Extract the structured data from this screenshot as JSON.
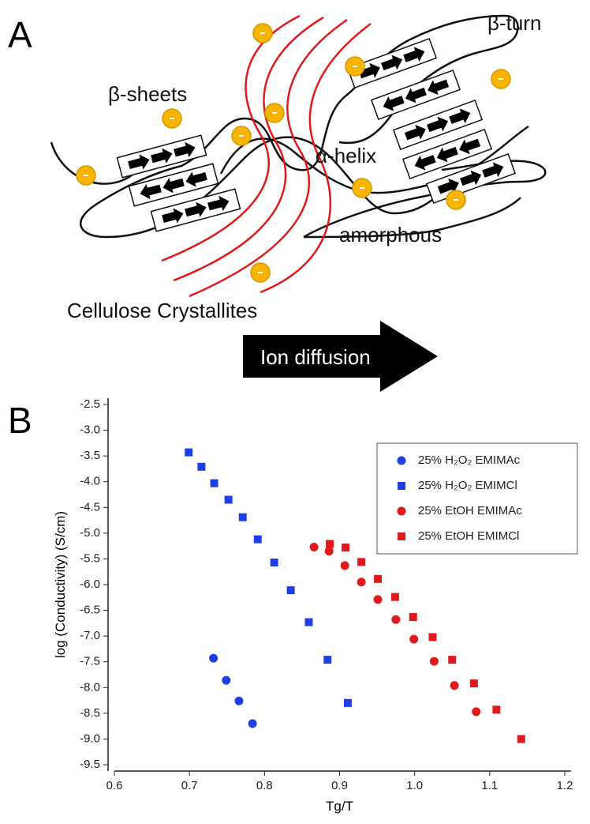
{
  "panel_a": {
    "label": "A",
    "labels": {
      "beta_turn": "β-turn",
      "beta_sheets": "β-sheets",
      "alpha_helix": "α-helix",
      "amorphous": "amorphous",
      "cellulose": "Cellulose Crystallites",
      "ion_diffusion": "Ion diffusion"
    }
  },
  "panel_b": {
    "label": "B"
  },
  "chart_data": {
    "type": "scatter",
    "xlabel": "Tg/T",
    "ylabel": "log (Conductivity) (S/cm)",
    "xlim": [
      0.6,
      1.2
    ],
    "xticks": [
      0.6,
      0.7,
      0.8,
      0.9,
      {
        "value": 1,
        "label": "1.0"
      },
      1.1,
      1.2
    ],
    "ylim": [
      -9.5,
      -2.5
    ],
    "yticks": [
      -2.5,
      {
        "value": -3,
        "label": "-3.0"
      },
      -3.5,
      {
        "value": -4,
        "label": "-4.0"
      },
      -4.5,
      {
        "value": -5,
        "label": "-5.0"
      },
      -5.5,
      {
        "value": -6,
        "label": "-6.0"
      },
      -6.5,
      {
        "value": -7,
        "label": "-7.0"
      },
      -7.5,
      {
        "value": -8,
        "label": "-8.0"
      },
      -8.5,
      {
        "value": -9,
        "label": "-9.0"
      },
      -9.5
    ],
    "legend": "upper right",
    "series": [
      {
        "name": "25% H₂O₂ EMIMAc",
        "color": "#1f3fe6",
        "marker": "circle",
        "x": [
          0.732,
          0.749,
          0.766,
          0.784
        ],
        "values": [
          -7.43,
          -7.86,
          -8.26,
          -8.7
        ]
      },
      {
        "name": "25% H₂O₂ EMIMCl",
        "color": "#1f3fe6",
        "marker": "square",
        "x": [
          0.699,
          0.716,
          0.733,
          0.752,
          0.771,
          0.791,
          0.813,
          0.835,
          0.859,
          0.884,
          0.911
        ],
        "values": [
          -3.43,
          -3.71,
          -4.03,
          -4.35,
          -4.69,
          -5.12,
          -5.57,
          -6.11,
          -6.73,
          -7.46,
          -8.3
        ]
      },
      {
        "name": "25% EtOH EMIMAc",
        "color": "#e01a1a",
        "marker": "circle",
        "x": [
          0.866,
          0.886,
          0.907,
          0.929,
          0.951,
          0.975,
          0.999,
          1.026,
          1.053,
          1.082
        ],
        "values": [
          -5.27,
          -5.35,
          -5.63,
          -5.95,
          -6.29,
          -6.68,
          -7.06,
          -7.49,
          -7.96,
          -8.47
        ]
      },
      {
        "name": "25% EtOH EMIMCl",
        "color": "#e01a1a",
        "marker": "square",
        "x": [
          0.887,
          0.908,
          0.929,
          0.951,
          0.974,
          0.998,
          1.024,
          1.05,
          1.079,
          1.109,
          1.142
        ],
        "values": [
          -5.21,
          -5.28,
          -5.56,
          -5.89,
          -6.24,
          -6.63,
          -7.02,
          -7.46,
          -7.92,
          -8.43,
          -9.0
        ]
      }
    ]
  }
}
